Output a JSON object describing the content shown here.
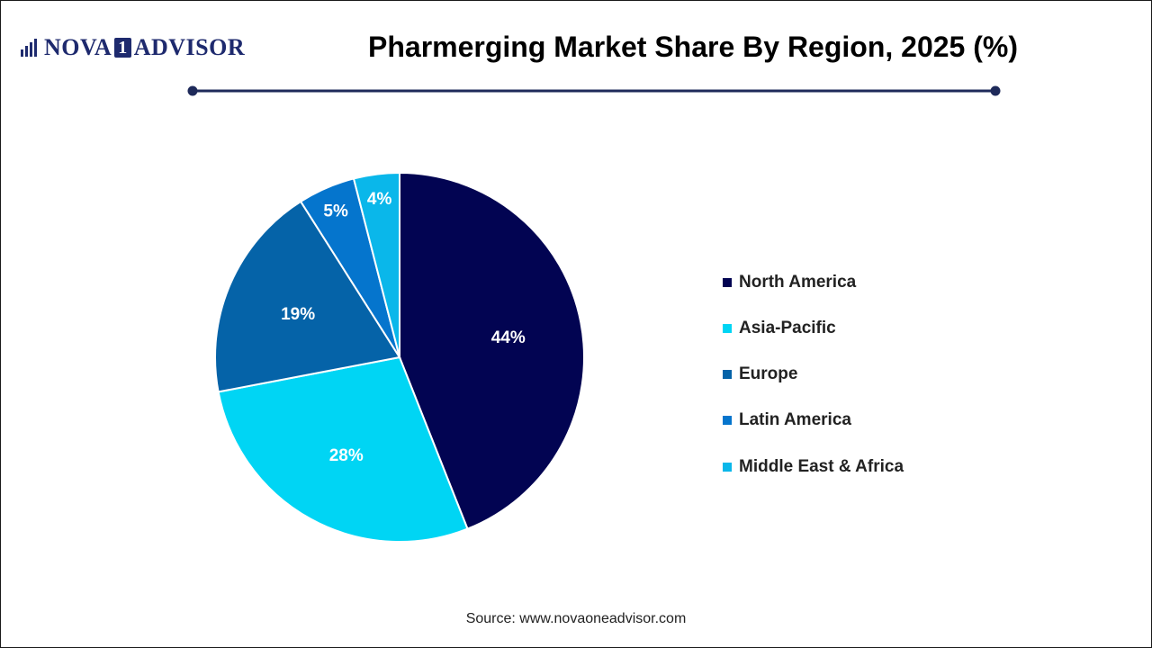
{
  "logo": {
    "text_left": "NOVA",
    "text_box": "1",
    "text_right": "ADVISOR"
  },
  "colors": {
    "North America": "#020452",
    "Asia-Pacific": "#00d5f4",
    "Europe": "#0563a8",
    "Latin America": "#0575cd",
    "Middle East & Africa": "#0ab7ea",
    "rule": "#1e2a5a"
  },
  "chart_data": {
    "type": "pie",
    "title": "Pharmerging Market Share By Region, 2025 (%)",
    "categories": [
      "North America",
      "Asia-Pacific",
      "Europe",
      "Latin America",
      "Middle East & Africa"
    ],
    "values": [
      44,
      28,
      19,
      5,
      4
    ],
    "data_labels": [
      "44%",
      "28%",
      "19%",
      "5%",
      "4%"
    ],
    "legend_position": "right"
  },
  "source": "Source: www.novaoneadvisor.com"
}
